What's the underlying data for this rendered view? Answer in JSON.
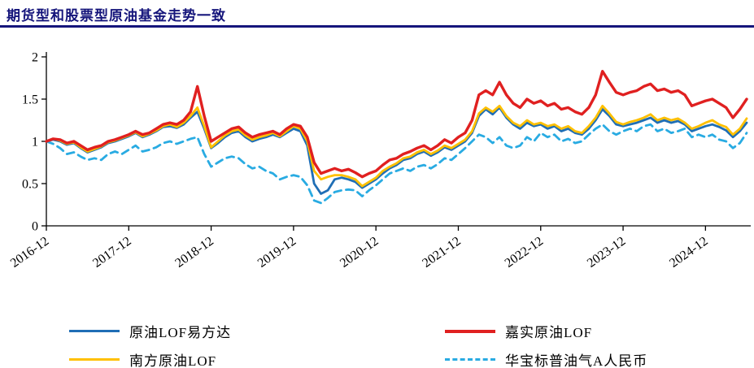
{
  "title": "期货型和股票型原油基金走势一致",
  "accent_color": "#15157B",
  "chart_data": {
    "type": "line",
    "title": "期货型和股票型原油基金走势一致",
    "x_unit": "month",
    "x_start": "2016-12",
    "x_tick_labels": [
      "2016-12",
      "2017-12",
      "2018-12",
      "2019-12",
      "2020-12",
      "2021-12",
      "2022-12",
      "2023-12",
      "2024-12"
    ],
    "x_tick_positions": [
      0,
      12,
      24,
      36,
      48,
      60,
      72,
      84,
      96
    ],
    "ylim": [
      0,
      2
    ],
    "y_ticks": [
      0,
      0.5,
      1,
      1.5,
      2
    ],
    "grid": false,
    "legend_position": "bottom",
    "series": [
      {
        "name": "原油LOF易方达",
        "color": "#1F6EB5",
        "style": "solid",
        "values": [
          1.0,
          1.02,
          1.0,
          0.96,
          0.98,
          0.92,
          0.87,
          0.9,
          0.93,
          0.98,
          1.0,
          1.03,
          1.06,
          1.1,
          1.05,
          1.08,
          1.12,
          1.17,
          1.18,
          1.16,
          1.2,
          1.28,
          1.35,
          1.15,
          0.92,
          0.98,
          1.05,
          1.1,
          1.12,
          1.05,
          1.0,
          1.03,
          1.05,
          1.08,
          1.05,
          1.1,
          1.15,
          1.12,
          0.95,
          0.5,
          0.38,
          0.42,
          0.55,
          0.57,
          0.55,
          0.52,
          0.45,
          0.5,
          0.55,
          0.62,
          0.68,
          0.72,
          0.78,
          0.8,
          0.85,
          0.88,
          0.83,
          0.87,
          0.93,
          0.9,
          0.95,
          1.0,
          1.1,
          1.3,
          1.38,
          1.32,
          1.4,
          1.28,
          1.2,
          1.15,
          1.22,
          1.18,
          1.2,
          1.15,
          1.18,
          1.12,
          1.15,
          1.1,
          1.08,
          1.15,
          1.25,
          1.38,
          1.3,
          1.2,
          1.18,
          1.2,
          1.22,
          1.25,
          1.28,
          1.22,
          1.25,
          1.22,
          1.24,
          1.2,
          1.12,
          1.15,
          1.18,
          1.2,
          1.17,
          1.13,
          1.05,
          1.12,
          1.22
        ]
      },
      {
        "name": "嘉实原油LOF",
        "color": "#E02020",
        "style": "solid",
        "values": [
          1.0,
          1.03,
          1.02,
          0.98,
          1.0,
          0.95,
          0.9,
          0.93,
          0.95,
          1.0,
          1.02,
          1.05,
          1.08,
          1.12,
          1.08,
          1.1,
          1.15,
          1.2,
          1.22,
          1.2,
          1.25,
          1.35,
          1.65,
          1.3,
          1.0,
          1.05,
          1.1,
          1.15,
          1.17,
          1.1,
          1.05,
          1.08,
          1.1,
          1.12,
          1.08,
          1.15,
          1.2,
          1.18,
          1.05,
          0.75,
          0.62,
          0.65,
          0.68,
          0.65,
          0.67,
          0.63,
          0.58,
          0.62,
          0.65,
          0.72,
          0.78,
          0.8,
          0.85,
          0.88,
          0.92,
          0.95,
          0.9,
          0.95,
          1.02,
          0.98,
          1.05,
          1.1,
          1.25,
          1.55,
          1.6,
          1.55,
          1.7,
          1.55,
          1.45,
          1.4,
          1.5,
          1.45,
          1.48,
          1.42,
          1.45,
          1.38,
          1.4,
          1.35,
          1.32,
          1.4,
          1.55,
          1.83,
          1.7,
          1.58,
          1.55,
          1.58,
          1.6,
          1.65,
          1.68,
          1.6,
          1.62,
          1.58,
          1.6,
          1.55,
          1.42,
          1.45,
          1.48,
          1.5,
          1.45,
          1.4,
          1.28,
          1.38,
          1.5
        ]
      },
      {
        "name": "南方原油LOF",
        "color": "#FFC000",
        "style": "solid",
        "values": [
          1.0,
          1.03,
          1.01,
          0.97,
          0.99,
          0.93,
          0.88,
          0.91,
          0.94,
          0.99,
          1.01,
          1.04,
          1.07,
          1.11,
          1.06,
          1.09,
          1.13,
          1.18,
          1.2,
          1.17,
          1.22,
          1.3,
          1.4,
          1.18,
          0.93,
          1.0,
          1.07,
          1.12,
          1.14,
          1.07,
          1.02,
          1.05,
          1.07,
          1.1,
          1.06,
          1.12,
          1.18,
          1.15,
          1.0,
          0.65,
          0.55,
          0.58,
          0.6,
          0.6,
          0.58,
          0.55,
          0.47,
          0.52,
          0.57,
          0.65,
          0.7,
          0.74,
          0.8,
          0.82,
          0.87,
          0.9,
          0.85,
          0.89,
          0.95,
          0.92,
          0.97,
          1.02,
          1.12,
          1.33,
          1.4,
          1.35,
          1.42,
          1.3,
          1.22,
          1.18,
          1.25,
          1.2,
          1.22,
          1.18,
          1.2,
          1.15,
          1.18,
          1.12,
          1.1,
          1.18,
          1.28,
          1.42,
          1.33,
          1.23,
          1.2,
          1.23,
          1.25,
          1.28,
          1.32,
          1.25,
          1.28,
          1.25,
          1.27,
          1.22,
          1.15,
          1.18,
          1.22,
          1.25,
          1.2,
          1.17,
          1.08,
          1.15,
          1.27
        ]
      },
      {
        "name": "华宝标普油气A人民币",
        "color": "#29ABE2",
        "style": "dashed",
        "values": [
          1.0,
          0.97,
          0.92,
          0.85,
          0.87,
          0.82,
          0.78,
          0.8,
          0.78,
          0.85,
          0.88,
          0.85,
          0.9,
          0.95,
          0.88,
          0.9,
          0.93,
          0.98,
          1.0,
          0.97,
          1.0,
          1.03,
          1.05,
          0.85,
          0.7,
          0.75,
          0.8,
          0.82,
          0.8,
          0.73,
          0.68,
          0.7,
          0.65,
          0.62,
          0.55,
          0.58,
          0.6,
          0.58,
          0.48,
          0.3,
          0.27,
          0.33,
          0.4,
          0.42,
          0.43,
          0.42,
          0.35,
          0.42,
          0.48,
          0.55,
          0.62,
          0.65,
          0.68,
          0.65,
          0.7,
          0.72,
          0.68,
          0.73,
          0.8,
          0.78,
          0.85,
          0.92,
          1.0,
          1.08,
          1.05,
          0.98,
          1.05,
          0.95,
          0.92,
          0.95,
          1.05,
          1.0,
          1.1,
          1.05,
          1.08,
          1.0,
          1.03,
          0.98,
          1.0,
          1.08,
          1.15,
          1.2,
          1.12,
          1.08,
          1.12,
          1.15,
          1.12,
          1.18,
          1.2,
          1.12,
          1.15,
          1.1,
          1.12,
          1.15,
          1.05,
          1.08,
          1.05,
          1.08,
          1.02,
          1.0,
          0.92,
          0.98,
          1.1
        ]
      }
    ]
  },
  "legend": {
    "items": [
      {
        "label": "原油LOF易方达",
        "color": "#1F6EB5",
        "style": "solid"
      },
      {
        "label": "嘉实原油LOF",
        "color": "#E02020",
        "style": "solid"
      },
      {
        "label": "南方原油LOF",
        "color": "#FFC000",
        "style": "solid"
      },
      {
        "label": "华宝标普油气A人民币",
        "color": "#29ABE2",
        "style": "dashed"
      }
    ]
  }
}
